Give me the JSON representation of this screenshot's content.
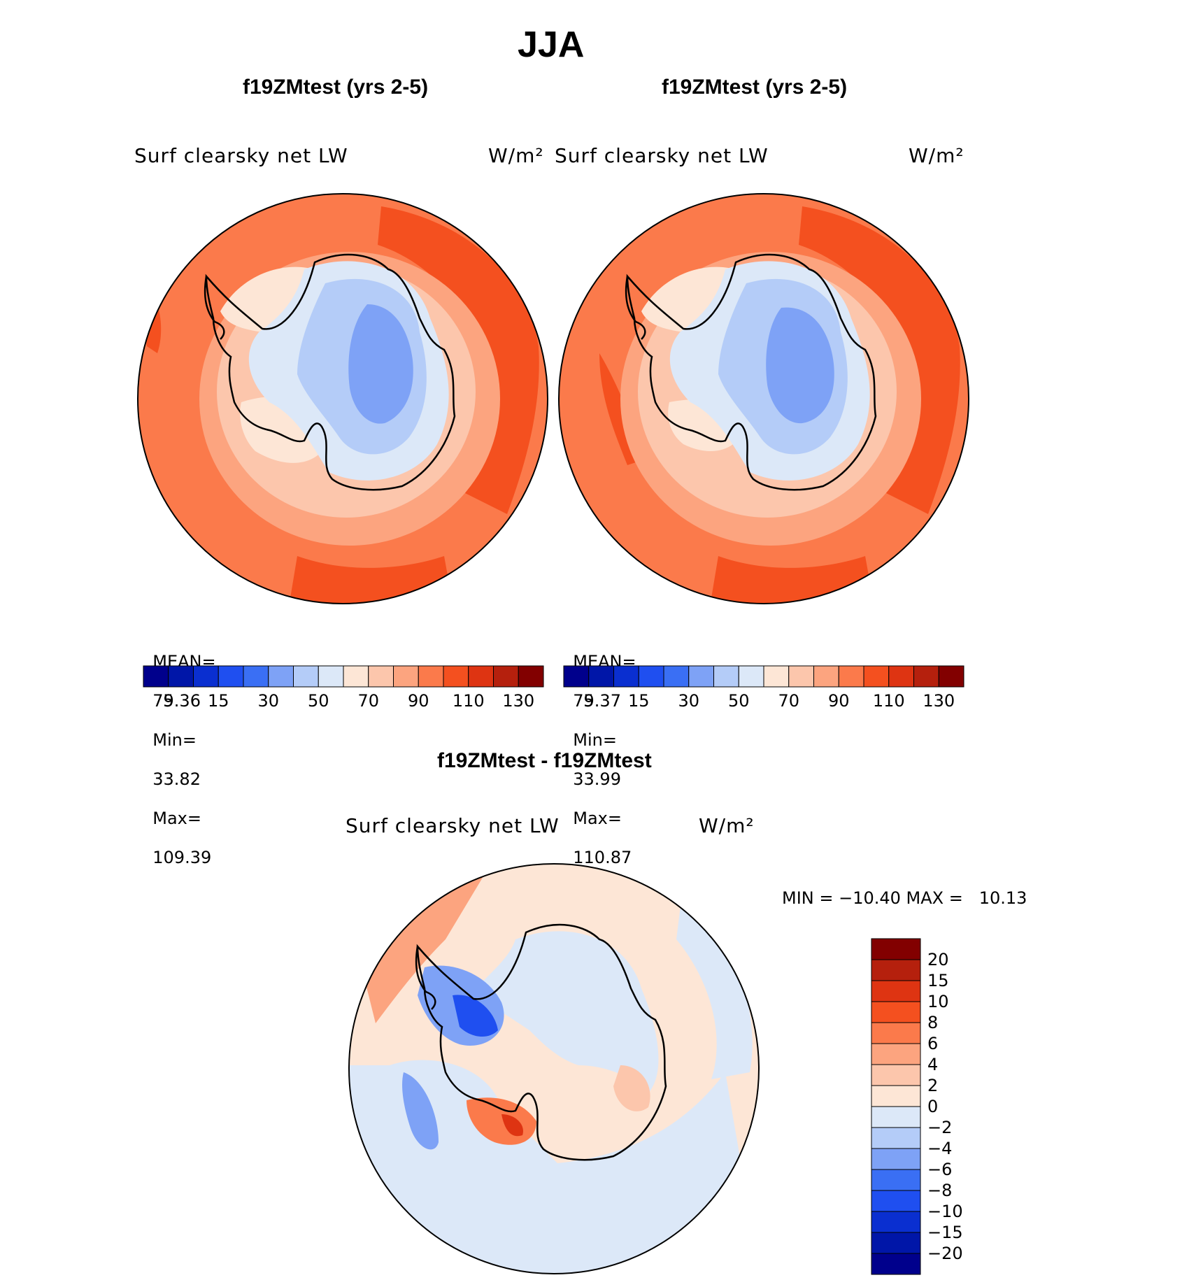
{
  "title": "JJA",
  "units": "W/m²",
  "chart_data": [
    {
      "type": "heatmap",
      "projection": "south-polar-stereographic",
      "title": "f19ZMtest (yrs 2-5)",
      "variable_label": "Surf clearsky net LW",
      "units": "W/m²",
      "stats": {
        "mean_label": "MEAN=",
        "mean": "79.36",
        "min_label": "Min=",
        "min": "33.82",
        "max_label": "Max=",
        "max": "109.39"
      },
      "colorbar_ticks": [
        "5",
        "15",
        "30",
        "50",
        "70",
        "90",
        "110",
        "130"
      ],
      "colorbar_colors": [
        "#00008c",
        "#0016a8",
        "#0a2fd0",
        "#1f4ff0",
        "#3a6ff4",
        "#7ea2f6",
        "#b4ccf8",
        "#dce8f8",
        "#fde6d6",
        "#fcc6ac",
        "#fca47f",
        "#fb7a4b",
        "#f4501f",
        "#de3412",
        "#b5200d",
        "#820000"
      ]
    },
    {
      "type": "heatmap",
      "projection": "south-polar-stereographic",
      "title": "f19ZMtest (yrs 2-5)",
      "variable_label": "Surf clearsky net LW",
      "units": "W/m²",
      "stats": {
        "mean_label": "MEAN=",
        "mean": "79.37",
        "min_label": "Min=",
        "min": "33.99",
        "max_label": "Max=",
        "max": "110.87"
      },
      "colorbar_ticks": [
        "5",
        "15",
        "30",
        "50",
        "70",
        "90",
        "110",
        "130"
      ],
      "colorbar_colors": [
        "#00008c",
        "#0016a8",
        "#0a2fd0",
        "#1f4ff0",
        "#3a6ff4",
        "#7ea2f6",
        "#b4ccf8",
        "#dce8f8",
        "#fde6d6",
        "#fcc6ac",
        "#fca47f",
        "#fb7a4b",
        "#f4501f",
        "#de3412",
        "#b5200d",
        "#820000"
      ]
    },
    {
      "type": "heatmap",
      "projection": "south-polar-stereographic",
      "title": "f19ZMtest - f19ZMtest",
      "variable_label": "Surf clearsky net LW",
      "units": "W/m²",
      "stats": {
        "text": "MIN = −10.40 MAX =   10.13",
        "min": -10.4,
        "max": 10.13
      },
      "colorbar_ticks": [
        "20",
        "15",
        "10",
        "8",
        "6",
        "4",
        "2",
        "0",
        "−2",
        "−4",
        "−6",
        "−8",
        "−10",
        "−15",
        "−20"
      ],
      "colorbar_colors": [
        "#820000",
        "#b5200d",
        "#de3412",
        "#f4501f",
        "#fb7a4b",
        "#fca47f",
        "#fcc6ac",
        "#fde6d6",
        "#dce8f8",
        "#b4ccf8",
        "#7ea2f6",
        "#3a6ff4",
        "#1f4ff0",
        "#0a2fd0",
        "#0016a8",
        "#00008c"
      ]
    }
  ]
}
